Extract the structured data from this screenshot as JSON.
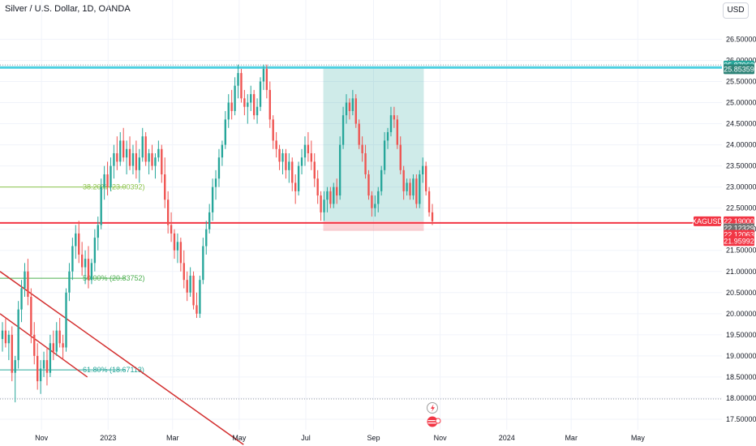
{
  "header": {
    "title": "Silver / U.S. Dollar, 1D, OANDA",
    "currency": "USD"
  },
  "chart_data": {
    "type": "candlestick",
    "symbol": "XAGUSD",
    "y_ticks": [
      17.5,
      18.0,
      18.5,
      19.0,
      19.5,
      20.0,
      20.5,
      21.0,
      21.5,
      22.0,
      22.5,
      23.0,
      23.5,
      24.0,
      24.5,
      25.0,
      25.5,
      26.0,
      26.5
    ],
    "y_tick_labels": [
      "17.50000",
      "18.00000",
      "18.50000",
      "19.00000",
      "19.50000",
      "20.00000",
      "20.50000",
      "21.00000",
      "21.50000",
      "22.00000",
      "22.50000",
      "23.00000",
      "23.50000",
      "24.00000",
      "24.50000",
      "25.00000",
      "25.50000",
      "26.00000",
      "26.50000"
    ],
    "ylim": [
      17.25,
      26.95
    ],
    "x_labels": [
      "Nov",
      "2023",
      "Mar",
      "May",
      "Jul",
      "Sep",
      "Nov",
      "2024",
      "Mar",
      "May"
    ],
    "x_label_days": [
      0,
      61,
      120,
      181,
      242,
      304,
      365,
      426,
      485,
      546
    ],
    "x_range_days": [
      -38,
      623
    ],
    "price_tags": [
      {
        "label": "25.87963",
        "value": 25.87963,
        "color": "#26a69a",
        "emph": false
      },
      {
        "label": "25.85359",
        "value": 25.79,
        "color": "#2f8478",
        "emph": true
      },
      {
        "label": "XAGUSD",
        "value": 22.19,
        "color": "#f23645",
        "emph": false,
        "symbol": true
      },
      {
        "label": "22.19000",
        "value": 22.19,
        "color": "#f23645",
        "emph": true
      },
      {
        "label": "22.12329",
        "value": 22.02,
        "color": "#707070",
        "emph": true
      },
      {
        "label": "22.12063",
        "value": 21.87,
        "color": "#f23645",
        "emph": true
      },
      {
        "label": "21.95992",
        "value": 21.72,
        "color": "#f23645",
        "emph": true
      }
    ],
    "fib_levels": [
      {
        "label": "38.20% (23.00392)",
        "value": 23.0,
        "color": "#8bc34a"
      },
      {
        "label": "50.00% (20.83752)",
        "value": 20.84,
        "color": "#4caf50"
      },
      {
        "label": "61.80% (18.67113)",
        "value": 18.67,
        "color": "#26a69a"
      }
    ],
    "resistance": {
      "value": 25.83,
      "color": "#4dd0e1"
    },
    "support": {
      "value": 22.15,
      "color": "#f23645"
    },
    "dotted_top": 25.89,
    "dotted_bottom": 17.98,
    "position_box": {
      "day_start": 258,
      "day_end": 350,
      "top": 25.83,
      "entry": 22.19,
      "bottom": 21.96
    },
    "trendlines": [
      {
        "day1": -38,
        "v1": 21.0,
        "day2": 185,
        "v2": 16.9
      },
      {
        "day1": -38,
        "v1": 20.0,
        "day2": 42,
        "v2": 18.5
      }
    ],
    "grid": true,
    "candles": [
      {
        "o": 19.4,
        "h": 19.8,
        "l": 19.1,
        "c": 19.6
      },
      {
        "o": 19.6,
        "h": 19.9,
        "l": 19.2,
        "c": 19.3
      },
      {
        "o": 19.3,
        "h": 19.6,
        "l": 18.9,
        "c": 19.5
      },
      {
        "o": 19.5,
        "h": 19.7,
        "l": 18.4,
        "c": 18.6
      },
      {
        "o": 18.6,
        "h": 19.0,
        "l": 17.9,
        "c": 18.9
      },
      {
        "o": 18.9,
        "h": 20.3,
        "l": 18.7,
        "c": 20.1
      },
      {
        "o": 20.1,
        "h": 20.8,
        "l": 19.8,
        "c": 20.6
      },
      {
        "o": 20.6,
        "h": 21.2,
        "l": 20.4,
        "c": 21.0
      },
      {
        "o": 21.0,
        "h": 21.3,
        "l": 20.2,
        "c": 20.4
      },
      {
        "o": 20.4,
        "h": 20.6,
        "l": 19.3,
        "c": 19.5
      },
      {
        "o": 19.5,
        "h": 19.8,
        "l": 18.8,
        "c": 19.0
      },
      {
        "o": 19.0,
        "h": 19.3,
        "l": 18.2,
        "c": 18.4
      },
      {
        "o": 18.4,
        "h": 18.9,
        "l": 18.1,
        "c": 18.7
      },
      {
        "o": 18.7,
        "h": 19.1,
        "l": 18.5,
        "c": 18.9
      },
      {
        "o": 18.9,
        "h": 19.2,
        "l": 18.3,
        "c": 18.6
      },
      {
        "o": 18.6,
        "h": 19.5,
        "l": 18.5,
        "c": 19.3
      },
      {
        "o": 19.3,
        "h": 19.6,
        "l": 18.9,
        "c": 19.1
      },
      {
        "o": 19.1,
        "h": 19.8,
        "l": 19.0,
        "c": 19.6
      },
      {
        "o": 19.6,
        "h": 19.9,
        "l": 19.2,
        "c": 19.3
      },
      {
        "o": 19.3,
        "h": 19.5,
        "l": 18.9,
        "c": 19.2
      },
      {
        "o": 19.2,
        "h": 20.6,
        "l": 19.1,
        "c": 20.5
      },
      {
        "o": 20.5,
        "h": 21.2,
        "l": 20.3,
        "c": 21.0
      },
      {
        "o": 21.0,
        "h": 21.8,
        "l": 20.8,
        "c": 21.6
      },
      {
        "o": 21.6,
        "h": 22.1,
        "l": 21.3,
        "c": 21.9
      },
      {
        "o": 21.9,
        "h": 22.2,
        "l": 21.2,
        "c": 21.4
      },
      {
        "o": 21.4,
        "h": 21.7,
        "l": 20.9,
        "c": 21.1
      },
      {
        "o": 21.1,
        "h": 21.5,
        "l": 20.7,
        "c": 21.3
      },
      {
        "o": 21.3,
        "h": 21.6,
        "l": 20.6,
        "c": 20.8
      },
      {
        "o": 20.8,
        "h": 21.3,
        "l": 20.7,
        "c": 21.2
      },
      {
        "o": 21.2,
        "h": 22.0,
        "l": 21.0,
        "c": 21.8
      },
      {
        "o": 21.8,
        "h": 22.3,
        "l": 21.5,
        "c": 22.1
      },
      {
        "o": 22.1,
        "h": 23.2,
        "l": 22.0,
        "c": 23.0
      },
      {
        "o": 23.0,
        "h": 23.5,
        "l": 22.7,
        "c": 23.3
      },
      {
        "o": 23.3,
        "h": 23.6,
        "l": 22.8,
        "c": 23.0
      },
      {
        "o": 23.0,
        "h": 23.7,
        "l": 22.9,
        "c": 23.5
      },
      {
        "o": 23.5,
        "h": 24.0,
        "l": 23.2,
        "c": 23.8
      },
      {
        "o": 23.8,
        "h": 24.2,
        "l": 23.4,
        "c": 23.6
      },
      {
        "o": 23.6,
        "h": 24.3,
        "l": 23.5,
        "c": 24.1
      },
      {
        "o": 24.1,
        "h": 24.4,
        "l": 23.6,
        "c": 23.7
      },
      {
        "o": 23.7,
        "h": 24.1,
        "l": 23.3,
        "c": 23.9
      },
      {
        "o": 23.9,
        "h": 24.2,
        "l": 23.4,
        "c": 23.5
      },
      {
        "o": 23.5,
        "h": 24.0,
        "l": 23.3,
        "c": 23.8
      },
      {
        "o": 23.8,
        "h": 24.1,
        "l": 23.2,
        "c": 23.4
      },
      {
        "o": 23.4,
        "h": 23.9,
        "l": 23.1,
        "c": 23.7
      },
      {
        "o": 23.7,
        "h": 24.4,
        "l": 23.6,
        "c": 24.2
      },
      {
        "o": 24.2,
        "h": 24.3,
        "l": 23.5,
        "c": 23.6
      },
      {
        "o": 23.6,
        "h": 23.9,
        "l": 23.3,
        "c": 23.8
      },
      {
        "o": 23.8,
        "h": 24.0,
        "l": 23.4,
        "c": 23.5
      },
      {
        "o": 23.5,
        "h": 23.8,
        "l": 23.2,
        "c": 23.7
      },
      {
        "o": 23.7,
        "h": 24.1,
        "l": 23.6,
        "c": 23.9
      },
      {
        "o": 23.9,
        "h": 24.0,
        "l": 23.1,
        "c": 23.3
      },
      {
        "o": 23.3,
        "h": 23.7,
        "l": 22.5,
        "c": 22.7
      },
      {
        "o": 22.7,
        "h": 22.9,
        "l": 21.9,
        "c": 22.1
      },
      {
        "o": 22.1,
        "h": 22.4,
        "l": 21.7,
        "c": 21.9
      },
      {
        "o": 21.9,
        "h": 22.0,
        "l": 21.3,
        "c": 21.5
      },
      {
        "o": 21.5,
        "h": 21.9,
        "l": 21.2,
        "c": 21.7
      },
      {
        "o": 21.7,
        "h": 21.8,
        "l": 21.0,
        "c": 21.2
      },
      {
        "o": 21.2,
        "h": 21.5,
        "l": 20.6,
        "c": 20.8
      },
      {
        "o": 20.8,
        "h": 21.0,
        "l": 20.3,
        "c": 20.5
      },
      {
        "o": 20.5,
        "h": 21.1,
        "l": 20.4,
        "c": 20.9
      },
      {
        "o": 20.9,
        "h": 21.0,
        "l": 20.1,
        "c": 20.2
      },
      {
        "o": 20.2,
        "h": 20.5,
        "l": 19.9,
        "c": 20.0
      },
      {
        "o": 20.0,
        "h": 20.9,
        "l": 19.9,
        "c": 20.8
      },
      {
        "o": 20.8,
        "h": 21.8,
        "l": 20.7,
        "c": 21.6
      },
      {
        "o": 21.6,
        "h": 22.2,
        "l": 21.4,
        "c": 22.0
      },
      {
        "o": 22.0,
        "h": 22.6,
        "l": 21.9,
        "c": 22.4
      },
      {
        "o": 22.4,
        "h": 23.2,
        "l": 22.2,
        "c": 23.0
      },
      {
        "o": 23.0,
        "h": 23.4,
        "l": 22.7,
        "c": 23.2
      },
      {
        "o": 23.2,
        "h": 23.9,
        "l": 23.0,
        "c": 23.7
      },
      {
        "o": 23.7,
        "h": 24.1,
        "l": 23.5,
        "c": 24.0
      },
      {
        "o": 24.0,
        "h": 24.8,
        "l": 23.9,
        "c": 24.6
      },
      {
        "o": 24.6,
        "h": 25.2,
        "l": 24.4,
        "c": 25.0
      },
      {
        "o": 25.0,
        "h": 25.3,
        "l": 24.6,
        "c": 24.8
      },
      {
        "o": 24.8,
        "h": 25.6,
        "l": 24.7,
        "c": 25.4
      },
      {
        "o": 25.4,
        "h": 25.9,
        "l": 25.1,
        "c": 25.7
      },
      {
        "o": 25.7,
        "h": 25.8,
        "l": 25.0,
        "c": 25.1
      },
      {
        "o": 25.1,
        "h": 25.3,
        "l": 24.7,
        "c": 24.9
      },
      {
        "o": 24.9,
        "h": 25.2,
        "l": 24.5,
        "c": 25.0
      },
      {
        "o": 25.0,
        "h": 25.4,
        "l": 24.8,
        "c": 25.2
      },
      {
        "o": 25.2,
        "h": 25.3,
        "l": 24.6,
        "c": 24.7
      },
      {
        "o": 24.7,
        "h": 25.1,
        "l": 24.5,
        "c": 24.9
      },
      {
        "o": 24.9,
        "h": 25.6,
        "l": 24.8,
        "c": 25.5
      },
      {
        "o": 25.5,
        "h": 25.9,
        "l": 25.3,
        "c": 25.8
      },
      {
        "o": 25.8,
        "h": 25.9,
        "l": 25.1,
        "c": 25.3
      },
      {
        "o": 25.3,
        "h": 25.5,
        "l": 24.4,
        "c": 24.6
      },
      {
        "o": 24.6,
        "h": 24.7,
        "l": 23.9,
        "c": 24.1
      },
      {
        "o": 24.1,
        "h": 24.3,
        "l": 23.7,
        "c": 23.9
      },
      {
        "o": 23.9,
        "h": 24.0,
        "l": 23.4,
        "c": 23.6
      },
      {
        "o": 23.6,
        "h": 23.9,
        "l": 23.3,
        "c": 23.8
      },
      {
        "o": 23.8,
        "h": 23.9,
        "l": 23.2,
        "c": 23.4
      },
      {
        "o": 23.4,
        "h": 23.8,
        "l": 23.1,
        "c": 23.6
      },
      {
        "o": 23.6,
        "h": 23.7,
        "l": 22.9,
        "c": 23.1
      },
      {
        "o": 23.1,
        "h": 23.3,
        "l": 22.6,
        "c": 22.9
      },
      {
        "o": 22.9,
        "h": 23.6,
        "l": 22.8,
        "c": 23.5
      },
      {
        "o": 23.5,
        "h": 23.9,
        "l": 23.3,
        "c": 23.7
      },
      {
        "o": 23.7,
        "h": 24.2,
        "l": 23.5,
        "c": 24.0
      },
      {
        "o": 24.0,
        "h": 24.3,
        "l": 23.6,
        "c": 23.8
      },
      {
        "o": 23.8,
        "h": 24.1,
        "l": 23.4,
        "c": 23.6
      },
      {
        "o": 23.6,
        "h": 23.8,
        "l": 23.0,
        "c": 23.2
      },
      {
        "o": 23.2,
        "h": 23.4,
        "l": 22.6,
        "c": 22.8
      },
      {
        "o": 22.8,
        "h": 22.9,
        "l": 22.2,
        "c": 22.4
      },
      {
        "o": 22.4,
        "h": 22.9,
        "l": 22.2,
        "c": 22.7
      },
      {
        "o": 22.7,
        "h": 23.0,
        "l": 22.4,
        "c": 22.9
      },
      {
        "o": 22.9,
        "h": 23.0,
        "l": 22.5,
        "c": 22.6
      },
      {
        "o": 22.6,
        "h": 23.1,
        "l": 22.5,
        "c": 23.0
      },
      {
        "o": 23.0,
        "h": 23.2,
        "l": 22.6,
        "c": 22.8
      },
      {
        "o": 22.8,
        "h": 24.2,
        "l": 22.7,
        "c": 24.0
      },
      {
        "o": 24.0,
        "h": 24.9,
        "l": 23.9,
        "c": 24.7
      },
      {
        "o": 24.7,
        "h": 25.2,
        "l": 24.5,
        "c": 25.0
      },
      {
        "o": 25.0,
        "h": 25.1,
        "l": 24.6,
        "c": 24.8
      },
      {
        "o": 24.8,
        "h": 25.3,
        "l": 24.7,
        "c": 25.1
      },
      {
        "o": 25.1,
        "h": 25.2,
        "l": 24.4,
        "c": 24.5
      },
      {
        "o": 24.5,
        "h": 24.6,
        "l": 23.9,
        "c": 24.0
      },
      {
        "o": 24.0,
        "h": 24.2,
        "l": 23.6,
        "c": 23.8
      },
      {
        "o": 23.8,
        "h": 24.0,
        "l": 23.2,
        "c": 23.3
      },
      {
        "o": 23.3,
        "h": 23.4,
        "l": 22.7,
        "c": 22.8
      },
      {
        "o": 22.8,
        "h": 22.9,
        "l": 22.3,
        "c": 22.5
      },
      {
        "o": 22.5,
        "h": 22.8,
        "l": 22.3,
        "c": 22.6
      },
      {
        "o": 22.6,
        "h": 23.0,
        "l": 22.4,
        "c": 22.9
      },
      {
        "o": 22.9,
        "h": 23.5,
        "l": 22.8,
        "c": 23.4
      },
      {
        "o": 23.4,
        "h": 24.3,
        "l": 23.3,
        "c": 24.1
      },
      {
        "o": 24.1,
        "h": 24.4,
        "l": 23.9,
        "c": 24.3
      },
      {
        "o": 24.3,
        "h": 24.9,
        "l": 24.2,
        "c": 24.7
      },
      {
        "o": 24.7,
        "h": 24.9,
        "l": 24.4,
        "c": 24.6
      },
      {
        "o": 24.6,
        "h": 24.7,
        "l": 23.9,
        "c": 24.0
      },
      {
        "o": 24.0,
        "h": 24.2,
        "l": 23.3,
        "c": 23.4
      },
      {
        "o": 23.4,
        "h": 23.5,
        "l": 22.7,
        "c": 22.9
      },
      {
        "o": 22.9,
        "h": 23.2,
        "l": 22.8,
        "c": 23.1
      },
      {
        "o": 23.1,
        "h": 23.2,
        "l": 22.7,
        "c": 22.8
      },
      {
        "o": 22.8,
        "h": 23.3,
        "l": 22.7,
        "c": 23.2
      },
      {
        "o": 23.2,
        "h": 23.3,
        "l": 22.5,
        "c": 22.6
      },
      {
        "o": 22.6,
        "h": 23.4,
        "l": 22.5,
        "c": 23.3
      },
      {
        "o": 23.3,
        "h": 23.7,
        "l": 23.1,
        "c": 23.5
      },
      {
        "o": 23.5,
        "h": 23.6,
        "l": 22.8,
        "c": 22.9
      },
      {
        "o": 22.9,
        "h": 23.0,
        "l": 22.3,
        "c": 22.4
      },
      {
        "o": 22.4,
        "h": 22.6,
        "l": 22.1,
        "c": 22.19
      }
    ]
  }
}
